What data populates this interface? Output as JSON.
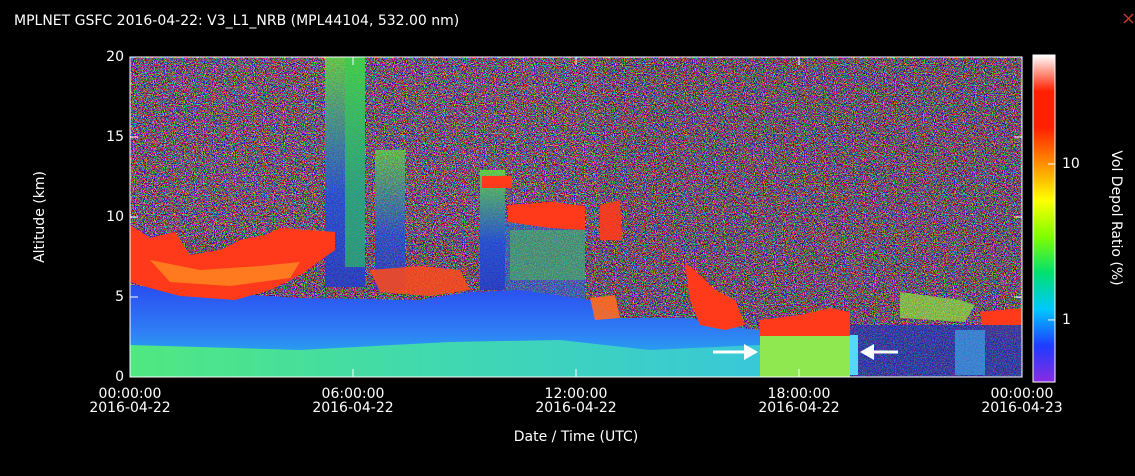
{
  "chart_data": {
    "type": "curtain",
    "title": "MPLNET GSFC 2016-04-22:  V3_L1_NRB  (MPL44104, 532.00 nm)",
    "x_label": "Date / Time (UTC)",
    "y_label": "Altitude (km)",
    "xlim": [
      "2016-04-22T00:00:00Z",
      "2016-04-23T00:00:00Z"
    ],
    "xticks": [
      {
        "value": "2016-04-22T00:00:00Z",
        "label": [
          "00:00:00",
          "2016-04-22"
        ]
      },
      {
        "value": "2016-04-22T06:00:00Z",
        "label": [
          "06:00:00",
          "2016-04-22"
        ]
      },
      {
        "value": "2016-04-22T12:00:00Z",
        "label": [
          "12:00:00",
          "2016-04-22"
        ]
      },
      {
        "value": "2016-04-22T18:00:00Z",
        "label": [
          "18:00:00",
          "2016-04-22"
        ]
      },
      {
        "value": "2016-04-23T00:00:00Z",
        "label": [
          "00:00:00",
          "2016-04-23"
        ]
      }
    ],
    "ylim": [
      0,
      20
    ],
    "yticks": [
      0,
      5,
      10,
      15,
      20
    ],
    "colorbar": {
      "label": "Vol Depol Ratio (%)",
      "scale": "log",
      "lim": [
        0.4,
        50
      ],
      "ticks": [
        1,
        10
      ],
      "colors": [
        "#8a2be2",
        "#1e3cff",
        "#00c8ff",
        "#00e070",
        "#80ff00",
        "#ffff00",
        "#ff9000",
        "#ff2000",
        "#ff2000",
        "#ffffff"
      ]
    }
  }
}
